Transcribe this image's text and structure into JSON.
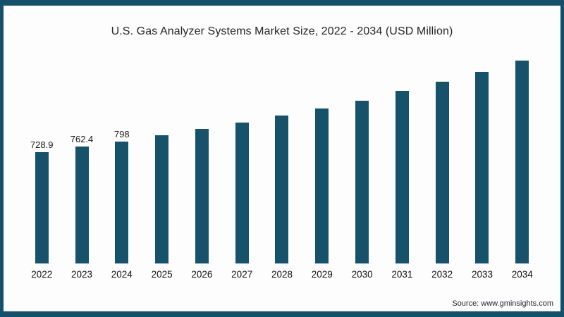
{
  "page": {
    "background": "#fdfdfd",
    "frame_border_color": "#15506B"
  },
  "header": {
    "title": "U.S. Gas Analyzer Systems Market Size, 2022 - 2034 (USD Million)"
  },
  "footer": {
    "source_text": "Source: www.gminsights.com"
  },
  "chart_data": {
    "type": "bar",
    "title": "U.S. Gas Analyzer Systems Market Size, 2022 - 2034 (USD Million)",
    "xlabel": "",
    "ylabel": "",
    "unit": "USD Million",
    "categories": [
      "2022",
      "2023",
      "2024",
      "2025",
      "2026",
      "2027",
      "2028",
      "2029",
      "2030",
      "2031",
      "2032",
      "2033",
      "2034"
    ],
    "values": [
      728.9,
      762.4,
      798,
      840,
      878,
      920,
      966,
      1014,
      1065,
      1126,
      1188,
      1254,
      1326
    ],
    "value_labels": [
      "728.9",
      "762.4",
      "798",
      "",
      "",
      "",
      "",
      "",
      "",
      "",
      "",
      "",
      ""
    ],
    "bar_color": "#16536B",
    "ylim": [
      0,
      1350
    ],
    "grid": false,
    "legend": false,
    "axis_lines": false,
    "legend_position": "none"
  }
}
